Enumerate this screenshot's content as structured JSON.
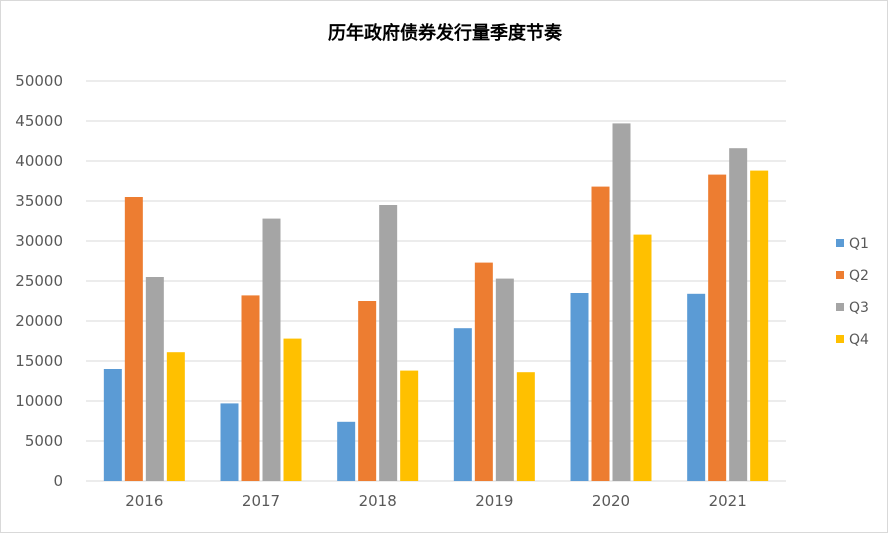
{
  "chart_data": {
    "type": "bar",
    "title": "历年政府债券发行量季度节奏",
    "xlabel": "",
    "ylabel": "",
    "categories": [
      "2016",
      "2017",
      "2018",
      "2019",
      "2020",
      "2021"
    ],
    "ylim": [
      0,
      50000
    ],
    "yticks": [
      "0",
      "5000",
      "10000",
      "15000",
      "20000",
      "25000",
      "30000",
      "35000",
      "40000",
      "45000",
      "50000"
    ],
    "grid": true,
    "legend_position": "right",
    "series": [
      {
        "name": "Q1",
        "color": "#5B9BD5",
        "values": [
          14000,
          9700,
          7400,
          19100,
          23500,
          23400
        ]
      },
      {
        "name": "Q2",
        "color": "#ED7D31",
        "values": [
          35500,
          23200,
          22500,
          27300,
          36800,
          38300
        ]
      },
      {
        "name": "Q3",
        "color": "#A5A5A5",
        "values": [
          25500,
          32800,
          34500,
          25300,
          44700,
          41600
        ]
      },
      {
        "name": "Q4",
        "color": "#FFC000",
        "values": [
          16100,
          17800,
          13800,
          13600,
          30800,
          38800
        ]
      }
    ]
  }
}
